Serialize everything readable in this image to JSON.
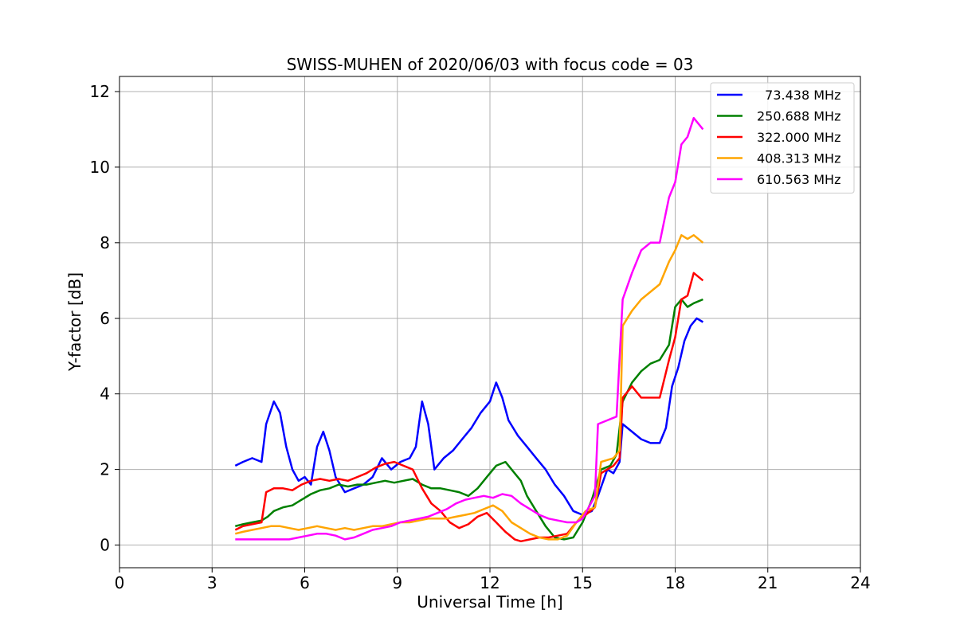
{
  "chart_data": {
    "type": "line",
    "title": "SWISS-MUHEN of 2020/06/03 with focus code = 03",
    "xlabel": "Universal Time [h]",
    "ylabel": "Y-factor [dB]",
    "xlim": [
      0,
      24
    ],
    "ylim": [
      -0.6,
      12.4
    ],
    "xticks": [
      0,
      3,
      6,
      9,
      12,
      15,
      18,
      21,
      24
    ],
    "yticks": [
      0,
      2,
      4,
      6,
      8,
      10,
      12
    ],
    "grid": true,
    "legend_position": "top-right",
    "series": [
      {
        "name": "  73.438 MHz",
        "color": "#0000ff",
        "points": [
          [
            3.75,
            2.1
          ],
          [
            4.0,
            2.2
          ],
          [
            4.3,
            2.3
          ],
          [
            4.6,
            2.2
          ],
          [
            4.75,
            3.2
          ],
          [
            5.0,
            3.8
          ],
          [
            5.2,
            3.5
          ],
          [
            5.4,
            2.6
          ],
          [
            5.6,
            2.0
          ],
          [
            5.8,
            1.7
          ],
          [
            6.0,
            1.8
          ],
          [
            6.2,
            1.6
          ],
          [
            6.4,
            2.6
          ],
          [
            6.6,
            3.0
          ],
          [
            6.8,
            2.5
          ],
          [
            7.0,
            1.8
          ],
          [
            7.3,
            1.4
          ],
          [
            7.6,
            1.5
          ],
          [
            7.9,
            1.6
          ],
          [
            8.2,
            1.8
          ],
          [
            8.5,
            2.3
          ],
          [
            8.8,
            2.0
          ],
          [
            9.1,
            2.2
          ],
          [
            9.4,
            2.3
          ],
          [
            9.6,
            2.6
          ],
          [
            9.8,
            3.8
          ],
          [
            10.0,
            3.2
          ],
          [
            10.2,
            2.0
          ],
          [
            10.5,
            2.3
          ],
          [
            10.8,
            2.5
          ],
          [
            11.1,
            2.8
          ],
          [
            11.4,
            3.1
          ],
          [
            11.7,
            3.5
          ],
          [
            12.0,
            3.8
          ],
          [
            12.2,
            4.3
          ],
          [
            12.4,
            3.9
          ],
          [
            12.6,
            3.3
          ],
          [
            12.9,
            2.9
          ],
          [
            13.2,
            2.6
          ],
          [
            13.5,
            2.3
          ],
          [
            13.8,
            2.0
          ],
          [
            14.1,
            1.6
          ],
          [
            14.4,
            1.3
          ],
          [
            14.7,
            0.9
          ],
          [
            15.0,
            0.8
          ],
          [
            15.3,
            0.9
          ],
          [
            15.5,
            1.3
          ],
          [
            15.8,
            2.0
          ],
          [
            16.0,
            1.9
          ],
          [
            16.2,
            2.2
          ],
          [
            16.3,
            3.2
          ],
          [
            16.6,
            3.0
          ],
          [
            16.9,
            2.8
          ],
          [
            17.2,
            2.7
          ],
          [
            17.5,
            2.7
          ],
          [
            17.7,
            3.1
          ],
          [
            17.9,
            4.2
          ],
          [
            18.1,
            4.7
          ],
          [
            18.3,
            5.4
          ],
          [
            18.5,
            5.8
          ],
          [
            18.7,
            6.0
          ],
          [
            18.9,
            5.9
          ]
        ]
      },
      {
        "name": "250.688 MHz",
        "color": "#008000",
        "points": [
          [
            3.75,
            0.5
          ],
          [
            4.0,
            0.55
          ],
          [
            4.3,
            0.6
          ],
          [
            4.6,
            0.65
          ],
          [
            4.8,
            0.75
          ],
          [
            5.0,
            0.9
          ],
          [
            5.3,
            1.0
          ],
          [
            5.6,
            1.05
          ],
          [
            5.9,
            1.2
          ],
          [
            6.2,
            1.35
          ],
          [
            6.5,
            1.45
          ],
          [
            6.8,
            1.5
          ],
          [
            7.1,
            1.6
          ],
          [
            7.4,
            1.55
          ],
          [
            7.7,
            1.6
          ],
          [
            8.0,
            1.6
          ],
          [
            8.3,
            1.65
          ],
          [
            8.6,
            1.7
          ],
          [
            8.9,
            1.65
          ],
          [
            9.2,
            1.7
          ],
          [
            9.5,
            1.75
          ],
          [
            9.8,
            1.6
          ],
          [
            10.1,
            1.5
          ],
          [
            10.4,
            1.5
          ],
          [
            10.7,
            1.45
          ],
          [
            11.0,
            1.4
          ],
          [
            11.3,
            1.3
          ],
          [
            11.6,
            1.5
          ],
          [
            11.9,
            1.8
          ],
          [
            12.2,
            2.1
          ],
          [
            12.5,
            2.2
          ],
          [
            12.8,
            1.9
          ],
          [
            13.0,
            1.7
          ],
          [
            13.2,
            1.3
          ],
          [
            13.5,
            0.9
          ],
          [
            13.8,
            0.5
          ],
          [
            14.1,
            0.2
          ],
          [
            14.4,
            0.15
          ],
          [
            14.7,
            0.2
          ],
          [
            15.0,
            0.6
          ],
          [
            15.3,
            1.2
          ],
          [
            15.6,
            2.0
          ],
          [
            15.9,
            2.1
          ],
          [
            16.1,
            2.4
          ],
          [
            16.3,
            3.8
          ],
          [
            16.6,
            4.3
          ],
          [
            16.9,
            4.6
          ],
          [
            17.2,
            4.8
          ],
          [
            17.5,
            4.9
          ],
          [
            17.8,
            5.3
          ],
          [
            18.0,
            6.3
          ],
          [
            18.2,
            6.5
          ],
          [
            18.4,
            6.3
          ],
          [
            18.6,
            6.4
          ],
          [
            18.9,
            6.5
          ]
        ]
      },
      {
        "name": "322.000 MHz",
        "color": "#ff0000",
        "points": [
          [
            3.75,
            0.4
          ],
          [
            4.0,
            0.5
          ],
          [
            4.3,
            0.55
          ],
          [
            4.6,
            0.6
          ],
          [
            4.75,
            1.4
          ],
          [
            5.0,
            1.5
          ],
          [
            5.3,
            1.5
          ],
          [
            5.6,
            1.45
          ],
          [
            5.9,
            1.6
          ],
          [
            6.2,
            1.7
          ],
          [
            6.5,
            1.75
          ],
          [
            6.8,
            1.7
          ],
          [
            7.1,
            1.75
          ],
          [
            7.4,
            1.7
          ],
          [
            7.7,
            1.8
          ],
          [
            8.0,
            1.9
          ],
          [
            8.3,
            2.05
          ],
          [
            8.6,
            2.15
          ],
          [
            8.9,
            2.2
          ],
          [
            9.2,
            2.1
          ],
          [
            9.5,
            2.0
          ],
          [
            9.8,
            1.5
          ],
          [
            10.1,
            1.1
          ],
          [
            10.4,
            0.9
          ],
          [
            10.7,
            0.6
          ],
          [
            11.0,
            0.45
          ],
          [
            11.3,
            0.55
          ],
          [
            11.6,
            0.75
          ],
          [
            11.9,
            0.85
          ],
          [
            12.2,
            0.6
          ],
          [
            12.5,
            0.35
          ],
          [
            12.8,
            0.15
          ],
          [
            13.0,
            0.1
          ],
          [
            13.3,
            0.15
          ],
          [
            13.6,
            0.2
          ],
          [
            13.9,
            0.2
          ],
          [
            14.2,
            0.25
          ],
          [
            14.5,
            0.3
          ],
          [
            14.8,
            0.6
          ],
          [
            15.1,
            0.8
          ],
          [
            15.4,
            1.0
          ],
          [
            15.6,
            1.9
          ],
          [
            16.0,
            2.1
          ],
          [
            16.2,
            2.3
          ],
          [
            16.3,
            3.9
          ],
          [
            16.6,
            4.2
          ],
          [
            16.9,
            3.9
          ],
          [
            17.2,
            3.9
          ],
          [
            17.5,
            3.9
          ],
          [
            17.8,
            4.9
          ],
          [
            18.0,
            5.5
          ],
          [
            18.2,
            6.5
          ],
          [
            18.4,
            6.6
          ],
          [
            18.6,
            7.2
          ],
          [
            18.9,
            7.0
          ]
        ]
      },
      {
        "name": "408.313 MHz",
        "color": "#ffa500",
        "points": [
          [
            3.75,
            0.3
          ],
          [
            4.0,
            0.35
          ],
          [
            4.3,
            0.4
          ],
          [
            4.6,
            0.45
          ],
          [
            4.9,
            0.5
          ],
          [
            5.2,
            0.5
          ],
          [
            5.5,
            0.45
          ],
          [
            5.8,
            0.4
          ],
          [
            6.1,
            0.45
          ],
          [
            6.4,
            0.5
          ],
          [
            6.7,
            0.45
          ],
          [
            7.0,
            0.4
          ],
          [
            7.3,
            0.45
          ],
          [
            7.6,
            0.4
          ],
          [
            7.9,
            0.45
          ],
          [
            8.2,
            0.5
          ],
          [
            8.5,
            0.5
          ],
          [
            8.8,
            0.55
          ],
          [
            9.1,
            0.6
          ],
          [
            9.4,
            0.6
          ],
          [
            9.7,
            0.65
          ],
          [
            10.0,
            0.7
          ],
          [
            10.3,
            0.7
          ],
          [
            10.6,
            0.7
          ],
          [
            10.9,
            0.75
          ],
          [
            11.2,
            0.8
          ],
          [
            11.5,
            0.85
          ],
          [
            11.8,
            0.95
          ],
          [
            12.1,
            1.05
          ],
          [
            12.4,
            0.9
          ],
          [
            12.7,
            0.6
          ],
          [
            13.0,
            0.45
          ],
          [
            13.3,
            0.3
          ],
          [
            13.6,
            0.2
          ],
          [
            13.9,
            0.15
          ],
          [
            14.2,
            0.15
          ],
          [
            14.5,
            0.25
          ],
          [
            14.8,
            0.6
          ],
          [
            15.1,
            0.9
          ],
          [
            15.4,
            1.0
          ],
          [
            15.6,
            2.2
          ],
          [
            16.0,
            2.3
          ],
          [
            16.2,
            2.5
          ],
          [
            16.3,
            5.8
          ],
          [
            16.6,
            6.2
          ],
          [
            16.9,
            6.5
          ],
          [
            17.2,
            6.7
          ],
          [
            17.5,
            6.9
          ],
          [
            17.8,
            7.5
          ],
          [
            18.0,
            7.8
          ],
          [
            18.2,
            8.2
          ],
          [
            18.4,
            8.1
          ],
          [
            18.6,
            8.2
          ],
          [
            18.9,
            8.0
          ]
        ]
      },
      {
        "name": "610.563 MHz",
        "color": "#ff00ff",
        "points": [
          [
            3.75,
            0.15
          ],
          [
            4.0,
            0.15
          ],
          [
            4.3,
            0.15
          ],
          [
            4.6,
            0.15
          ],
          [
            4.9,
            0.15
          ],
          [
            5.2,
            0.15
          ],
          [
            5.5,
            0.15
          ],
          [
            5.8,
            0.2
          ],
          [
            6.1,
            0.25
          ],
          [
            6.4,
            0.3
          ],
          [
            6.7,
            0.3
          ],
          [
            7.0,
            0.25
          ],
          [
            7.3,
            0.15
          ],
          [
            7.6,
            0.2
          ],
          [
            7.9,
            0.3
          ],
          [
            8.2,
            0.4
          ],
          [
            8.5,
            0.45
          ],
          [
            8.8,
            0.5
          ],
          [
            9.1,
            0.6
          ],
          [
            9.4,
            0.65
          ],
          [
            9.7,
            0.7
          ],
          [
            10.0,
            0.75
          ],
          [
            10.3,
            0.85
          ],
          [
            10.6,
            0.95
          ],
          [
            10.9,
            1.1
          ],
          [
            11.2,
            1.2
          ],
          [
            11.5,
            1.25
          ],
          [
            11.8,
            1.3
          ],
          [
            12.1,
            1.25
          ],
          [
            12.4,
            1.35
          ],
          [
            12.7,
            1.3
          ],
          [
            13.0,
            1.1
          ],
          [
            13.3,
            0.95
          ],
          [
            13.6,
            0.8
          ],
          [
            13.9,
            0.7
          ],
          [
            14.2,
            0.65
          ],
          [
            14.5,
            0.6
          ],
          [
            14.8,
            0.6
          ],
          [
            15.0,
            0.7
          ],
          [
            15.2,
            1.0
          ],
          [
            15.4,
            1.3
          ],
          [
            15.5,
            3.2
          ],
          [
            15.8,
            3.3
          ],
          [
            16.1,
            3.4
          ],
          [
            16.3,
            6.5
          ],
          [
            16.6,
            7.2
          ],
          [
            16.9,
            7.8
          ],
          [
            17.2,
            8.0
          ],
          [
            17.5,
            8.0
          ],
          [
            17.8,
            9.2
          ],
          [
            18.0,
            9.6
          ],
          [
            18.2,
            10.6
          ],
          [
            18.4,
            10.8
          ],
          [
            18.6,
            11.3
          ],
          [
            18.9,
            11.0
          ]
        ]
      }
    ]
  }
}
